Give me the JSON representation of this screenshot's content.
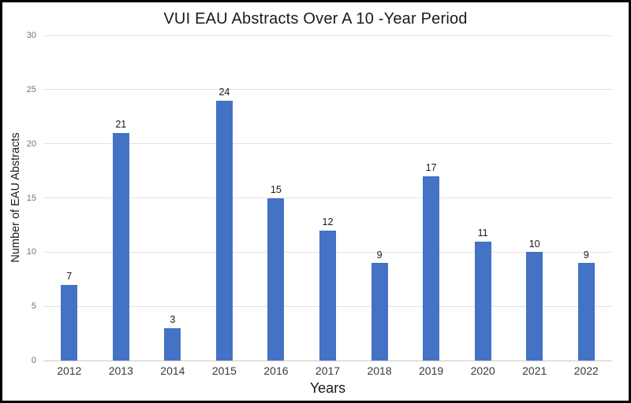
{
  "chart_data": {
    "type": "bar",
    "title": "VUI EAU Abstracts Over A 10 -Year Period",
    "xlabel": "Years",
    "ylabel": "Number of EAU Abstracts",
    "categories": [
      "2012",
      "2013",
      "2014",
      "2015",
      "2016",
      "2017",
      "2018",
      "2019",
      "2020",
      "2021",
      "2022"
    ],
    "values": [
      7,
      21,
      3,
      24,
      15,
      12,
      9,
      17,
      11,
      10,
      9
    ],
    "ylim": [
      0,
      30
    ],
    "yticks": [
      0,
      5,
      10,
      15,
      20,
      25,
      30
    ],
    "grid": true,
    "legend": false,
    "data_labels": true,
    "colors": {
      "bar_fill": "#4472C4",
      "gridline": "#E2E2E2",
      "axis_line": "#C9C9C9",
      "y_tick_label": "#737373",
      "x_tick_label": "#3A3A3A",
      "value_label": "#1A1A1A",
      "frame_border": "#000000",
      "background": "#FFFFFF"
    }
  }
}
